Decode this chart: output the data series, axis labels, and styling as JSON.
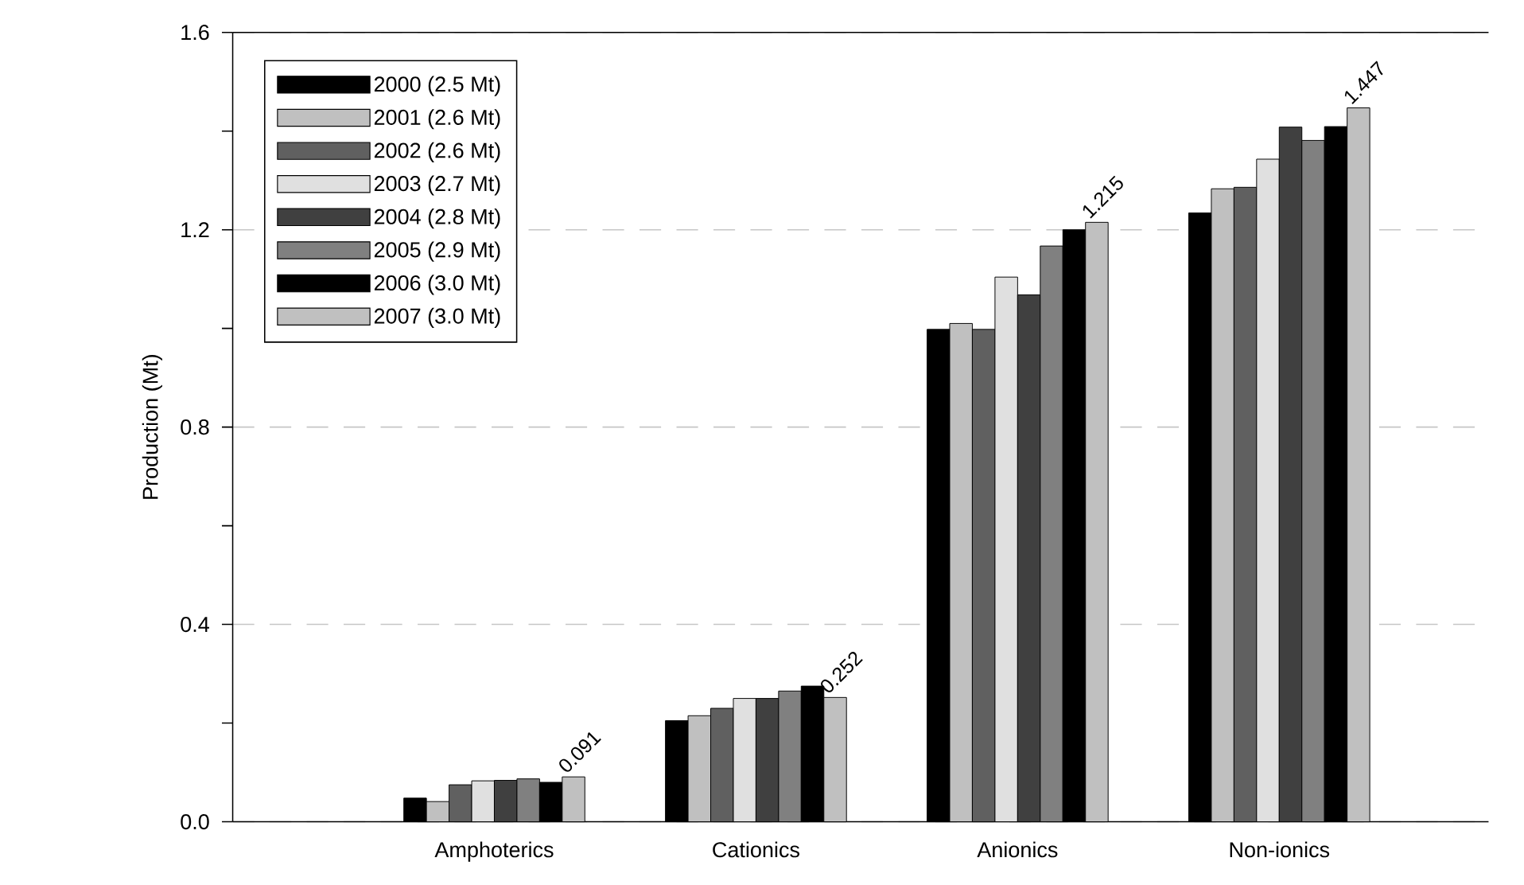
{
  "chart_data": {
    "type": "bar",
    "ylabel": "Production (Mt)",
    "categories": [
      "Amphoterics",
      "Cationics",
      "Anionics",
      "Non-ionics"
    ],
    "series": [
      {
        "name": "2000 (2.5 Mt)",
        "color": "#000000",
        "values": [
          0.048,
          0.205,
          0.998,
          1.234
        ]
      },
      {
        "name": "2001 (2.6 Mt)",
        "color": "#c0c0c0",
        "values": [
          0.041,
          0.215,
          1.01,
          1.283
        ]
      },
      {
        "name": "2002 (2.6 Mt)",
        "color": "#606060",
        "values": [
          0.075,
          0.23,
          0.998,
          1.286
        ]
      },
      {
        "name": "2003 (2.7 Mt)",
        "color": "#e0e0e0",
        "values": [
          0.083,
          0.25,
          1.104,
          1.343
        ]
      },
      {
        "name": "2004 (2.8 Mt)",
        "color": "#404040",
        "values": [
          0.084,
          0.25,
          1.068,
          1.408
        ]
      },
      {
        "name": "2005 (2.9 Mt)",
        "color": "#808080",
        "values": [
          0.087,
          0.265,
          1.167,
          1.381
        ]
      },
      {
        "name": "2006 (3.0 Mt)",
        "color": "#000000",
        "values": [
          0.08,
          0.275,
          1.2,
          1.409
        ]
      },
      {
        "name": "2007 (3.0 Mt)",
        "color": "#c0c0c0",
        "values": [
          0.091,
          0.252,
          1.215,
          1.447
        ],
        "value_labels": [
          "0.091",
          "0.252",
          "1.215",
          "1.447"
        ]
      }
    ],
    "ylim": [
      0,
      1.6
    ],
    "yticks": [
      {
        "value": 0.0,
        "label": "0.0"
      },
      {
        "value": 0.2,
        "label": null
      },
      {
        "value": 0.4,
        "label": "0.4"
      },
      {
        "value": 0.6,
        "label": null
      },
      {
        "value": 0.8,
        "label": "0.8"
      },
      {
        "value": 1.0,
        "label": null
      },
      {
        "value": 1.2,
        "label": "1.2"
      },
      {
        "value": 1.4,
        "label": null
      },
      {
        "value": 1.6,
        "label": "1.6"
      }
    ],
    "grid": "y",
    "legend": "top left"
  }
}
